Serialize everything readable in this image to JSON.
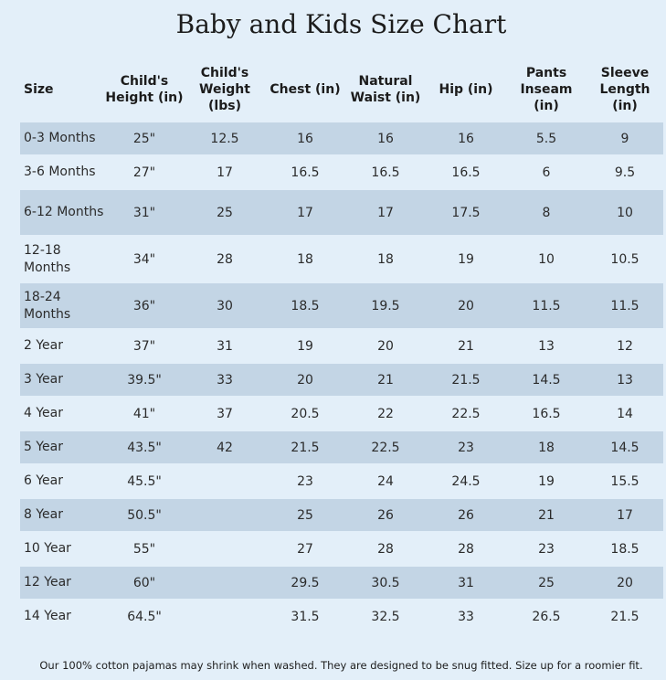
{
  "title": "Baby and Kids Size Chart",
  "headers": [
    {
      "l1": "Size",
      "l2": "",
      "l3": ""
    },
    {
      "l1": "Child's",
      "l2": "Height (in)",
      "l3": ""
    },
    {
      "l1": "Child's",
      "l2": "Weight",
      "l3": "(lbs)"
    },
    {
      "l1": "Chest (in)",
      "l2": "",
      "l3": ""
    },
    {
      "l1": "Natural",
      "l2": "Waist (in)",
      "l3": ""
    },
    {
      "l1": "Hip (in)",
      "l2": "",
      "l3": ""
    },
    {
      "l1": "Pants",
      "l2": "Inseam",
      "l3": "(in)"
    },
    {
      "l1": "Sleeve",
      "l2": "Length (in)",
      "l3": ""
    }
  ],
  "rows": [
    {
      "size": "0-3 Months",
      "height": "25\"",
      "weight": "12.5",
      "chest": "16",
      "waist": "16",
      "hip": "16",
      "inseam": "5.5",
      "sleeve": "9"
    },
    {
      "size": "3-6 Months",
      "height": "27\"",
      "weight": "17",
      "chest": "16.5",
      "waist": "16.5",
      "hip": "16.5",
      "inseam": "6",
      "sleeve": "9.5"
    },
    {
      "size": "6-12 Months",
      "height": "31\"",
      "weight": "25",
      "chest": "17",
      "waist": "17",
      "hip": "17.5",
      "inseam": "8",
      "sleeve": "10"
    },
    {
      "size": "12-18 Months",
      "height": "34\"",
      "weight": "28",
      "chest": "18",
      "waist": "18",
      "hip": "19",
      "inseam": "10",
      "sleeve": "10.5"
    },
    {
      "size": "18-24 Months",
      "height": "36\"",
      "weight": "30",
      "chest": "18.5",
      "waist": "19.5",
      "hip": "20",
      "inseam": "11.5",
      "sleeve": "11.5"
    },
    {
      "size": "2 Year",
      "height": "37\"",
      "weight": "31",
      "chest": "19",
      "waist": "20",
      "hip": "21",
      "inseam": "13",
      "sleeve": "12"
    },
    {
      "size": "3 Year",
      "height": "39.5\"",
      "weight": "33",
      "chest": "20",
      "waist": "21",
      "hip": "21.5",
      "inseam": "14.5",
      "sleeve": "13"
    },
    {
      "size": "4 Year",
      "height": "41\"",
      "weight": "37",
      "chest": "20.5",
      "waist": "22",
      "hip": "22.5",
      "inseam": "16.5",
      "sleeve": "14"
    },
    {
      "size": "5 Year",
      "height": "43.5\"",
      "weight": "42",
      "chest": "21.5",
      "waist": "22.5",
      "hip": "23",
      "inseam": "18",
      "sleeve": "14.5"
    },
    {
      "size": "6 Year",
      "height": "45.5\"",
      "weight": "",
      "chest": "23",
      "waist": "24",
      "hip": "24.5",
      "inseam": "19",
      "sleeve": "15.5"
    },
    {
      "size": "8 Year",
      "height": "50.5\"",
      "weight": "",
      "chest": "25",
      "waist": "26",
      "hip": "26",
      "inseam": "21",
      "sleeve": "17"
    },
    {
      "size": "10 Year",
      "height": "55\"",
      "weight": "",
      "chest": "27",
      "waist": "28",
      "hip": "28",
      "inseam": "23",
      "sleeve": "18.5"
    },
    {
      "size": "12 Year",
      "height": "60\"",
      "weight": "",
      "chest": "29.5",
      "waist": "30.5",
      "hip": "31",
      "inseam": "25",
      "sleeve": "20"
    },
    {
      "size": "14 Year",
      "height": "64.5\"",
      "weight": "",
      "chest": "31.5",
      "waist": "32.5",
      "hip": "33",
      "inseam": "26.5",
      "sleeve": "21.5"
    }
  ],
  "footer": "Our 100% cotton pajamas may shrink when washed. They are designed to be snug fitted. Size up for a roomier fit."
}
